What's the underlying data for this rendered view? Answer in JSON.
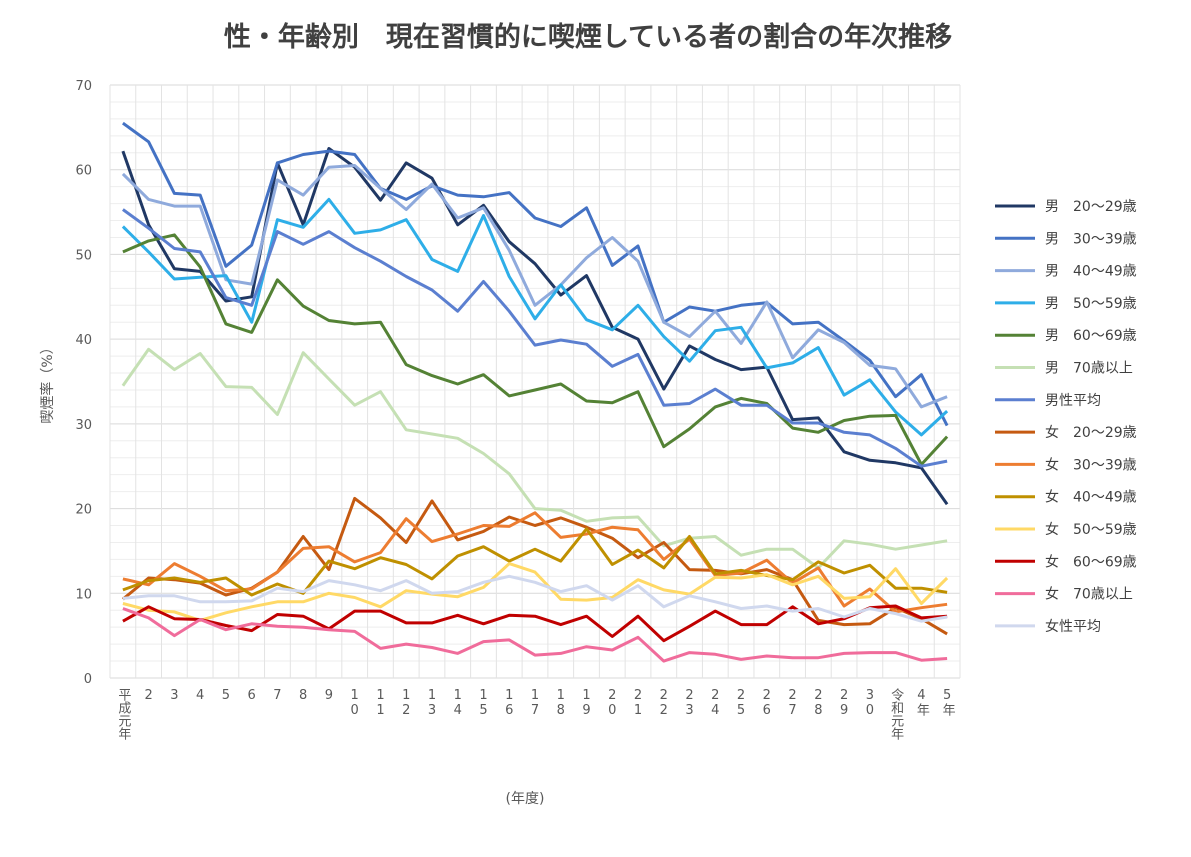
{
  "chart_data": {
    "type": "line",
    "title": "性・年齢別　現在習慣的に喫煙している者の割合の年次推移",
    "xlabel": "(年度)",
    "ylabel": "喫煙率（%）",
    "ylim": [
      0,
      70
    ],
    "yticks": [
      0,
      10,
      20,
      30,
      40,
      50,
      60,
      70
    ],
    "grid": true,
    "legend": "right",
    "categories": [
      "平成元年",
      "2",
      "3",
      "4",
      "5",
      "6",
      "7",
      "8",
      "9",
      "10",
      "11",
      "12",
      "13",
      "14",
      "15",
      "16",
      "17",
      "18",
      "19",
      "20",
      "21",
      "22",
      "23",
      "24",
      "25",
      "26",
      "27",
      "28",
      "29",
      "30",
      "令和元年",
      "4年",
      "5年"
    ],
    "series": [
      {
        "name": "男　20〜29歳",
        "color": "#203864",
        "values": [
          62.2,
          53.5,
          48.3,
          48.0,
          44.5,
          45.0,
          60.8,
          53.5,
          62.5,
          60.3,
          56.4,
          60.8,
          59.0,
          53.5,
          55.8,
          51.5,
          48.9,
          45.2,
          47.5,
          41.4,
          40.0,
          34.1,
          39.2,
          37.6,
          36.4,
          36.7,
          30.5,
          30.7,
          26.7,
          25.7,
          25.4,
          24.8,
          20.5
        ]
      },
      {
        "name": "男　30〜39歳",
        "color": "#4472C4",
        "values": [
          65.5,
          63.3,
          57.2,
          57.0,
          48.6,
          51.1,
          60.8,
          61.8,
          62.2,
          61.8,
          57.8,
          56.5,
          58.1,
          57.0,
          56.8,
          57.3,
          54.3,
          53.3,
          55.5,
          48.7,
          51.0,
          42.0,
          43.8,
          43.3,
          44.0,
          44.3,
          41.8,
          42.0,
          39.8,
          37.5,
          33.2,
          35.8,
          29.8
        ]
      },
      {
        "name": "男　40〜49歳",
        "color": "#8FAADC",
        "values": [
          59.5,
          56.5,
          55.7,
          55.7,
          47.0,
          46.5,
          58.8,
          57.0,
          60.3,
          60.5,
          57.8,
          55.3,
          58.3,
          54.3,
          55.5,
          50.5,
          44.0,
          46.4,
          49.6,
          52.0,
          49.2,
          42.0,
          40.3,
          43.3,
          39.5,
          44.4,
          37.8,
          41.1,
          39.6,
          36.9,
          36.5,
          32.0,
          33.2
        ]
      },
      {
        "name": "男　50〜59歳",
        "color": "#2EAEE8",
        "values": [
          53.3,
          50.3,
          47.1,
          47.3,
          47.5,
          42.0,
          54.1,
          53.2,
          56.5,
          52.5,
          52.9,
          54.1,
          49.4,
          48.0,
          54.6,
          47.4,
          42.4,
          46.4,
          42.3,
          41.1,
          44.0,
          40.3,
          37.4,
          41.0,
          41.4,
          36.6,
          37.2,
          39.0,
          33.4,
          35.2,
          31.4,
          28.7,
          31.5
        ]
      },
      {
        "name": "男　60〜69歳",
        "color": "#548235",
        "values": [
          50.3,
          51.6,
          52.3,
          48.5,
          41.8,
          40.8,
          47.0,
          43.9,
          42.2,
          41.8,
          42.0,
          37.0,
          35.7,
          34.7,
          35.8,
          33.3,
          34.0,
          34.7,
          32.7,
          32.5,
          33.8,
          27.3,
          29.4,
          32.0,
          33.0,
          32.4,
          29.5,
          29.0,
          30.4,
          30.9,
          31.0,
          25.2,
          28.5
        ]
      },
      {
        "name": "男　70歳以上",
        "color": "#C5E0B4",
        "values": [
          34.5,
          38.8,
          36.4,
          38.3,
          34.4,
          34.3,
          31.1,
          38.4,
          35.3,
          32.2,
          33.8,
          29.3,
          28.8,
          28.3,
          26.5,
          24.1,
          20.0,
          19.8,
          18.5,
          18.9,
          19.0,
          15.6,
          16.5,
          16.7,
          14.5,
          15.2,
          15.2,
          13.0,
          16.2,
          15.8,
          15.2,
          15.7,
          16.2
        ]
      },
      {
        "name": "男性平均",
        "color": "#5B7FD0",
        "values": [
          55.3,
          53.1,
          50.7,
          50.3,
          44.9,
          44.0,
          52.7,
          51.2,
          52.7,
          50.8,
          49.2,
          47.4,
          45.8,
          43.3,
          46.8,
          43.3,
          39.3,
          39.9,
          39.4,
          36.8,
          38.2,
          32.2,
          32.4,
          34.1,
          32.2,
          32.2,
          30.1,
          30.1,
          29.0,
          28.7,
          27.1,
          25.0,
          25.6
        ]
      },
      {
        "name": "女　20〜29歳",
        "color": "#C55A11",
        "values": [
          9.3,
          11.8,
          11.6,
          11.2,
          9.8,
          10.6,
          12.5,
          16.7,
          12.8,
          21.2,
          18.9,
          16.0,
          20.9,
          16.3,
          17.3,
          19.0,
          18.0,
          18.9,
          17.8,
          16.5,
          14.2,
          16.0,
          12.8,
          12.7,
          12.3,
          12.8,
          11.6,
          6.8,
          6.3,
          6.4,
          8.3,
          7.0,
          5.2
        ]
      },
      {
        "name": "女　30〜39歳",
        "color": "#ED7D31",
        "values": [
          11.7,
          11.0,
          13.5,
          12.0,
          10.3,
          10.5,
          12.5,
          15.3,
          15.5,
          13.7,
          14.8,
          18.8,
          16.1,
          17.0,
          18.0,
          17.9,
          19.5,
          16.6,
          17.0,
          17.8,
          17.5,
          14.0,
          16.4,
          12.1,
          12.4,
          13.9,
          11.2,
          13.0,
          8.5,
          10.5,
          7.8,
          8.3,
          8.7
        ]
      },
      {
        "name": "女　40〜49歳",
        "color": "#BF9000",
        "values": [
          10.4,
          11.5,
          11.8,
          11.3,
          11.8,
          9.8,
          11.1,
          10.0,
          13.8,
          12.9,
          14.2,
          13.4,
          11.7,
          14.4,
          15.5,
          13.8,
          15.2,
          13.8,
          17.6,
          13.4,
          15.1,
          13.0,
          16.7,
          12.3,
          12.7,
          12.1,
          11.6,
          13.7,
          12.4,
          13.3,
          10.6,
          10.6,
          10.1
        ]
      },
      {
        "name": "女　50〜59歳",
        "color": "#FFD966",
        "values": [
          8.8,
          8.0,
          7.8,
          6.8,
          7.7,
          8.4,
          9.0,
          9.0,
          10.0,
          9.5,
          8.4,
          10.3,
          9.9,
          9.6,
          10.7,
          13.5,
          12.5,
          9.3,
          9.2,
          9.5,
          11.6,
          10.4,
          9.9,
          11.9,
          11.8,
          12.2,
          11.0,
          12.0,
          9.4,
          9.6,
          12.9,
          8.8,
          11.8
        ]
      },
      {
        "name": "女　60〜69歳",
        "color": "#C00000",
        "values": [
          6.7,
          8.4,
          7.0,
          6.9,
          6.2,
          5.6,
          7.5,
          7.3,
          5.8,
          7.9,
          7.9,
          6.5,
          6.5,
          7.4,
          6.4,
          7.4,
          7.3,
          6.3,
          7.3,
          4.9,
          7.3,
          4.4,
          6.1,
          7.9,
          6.3,
          6.3,
          8.4,
          6.4,
          7.0,
          8.3,
          8.5,
          7.1,
          7.3
        ]
      },
      {
        "name": "女　70歳以上",
        "color": "#F06C9B",
        "values": [
          8.2,
          7.1,
          5.0,
          6.9,
          5.7,
          6.4,
          6.1,
          6.0,
          5.7,
          5.5,
          3.5,
          4.0,
          3.6,
          2.9,
          4.3,
          4.5,
          2.7,
          2.9,
          3.7,
          3.3,
          4.8,
          2.0,
          3.0,
          2.8,
          2.2,
          2.6,
          2.4,
          2.4,
          2.9,
          3.0,
          3.0,
          2.1,
          2.3
        ]
      },
      {
        "name": "女性平均",
        "color": "#D0D8EE",
        "values": [
          9.4,
          9.7,
          9.7,
          9.0,
          9.0,
          9.1,
          10.6,
          10.2,
          11.5,
          11.0,
          10.3,
          11.5,
          10.0,
          10.2,
          11.3,
          12.0,
          11.3,
          10.2,
          10.9,
          9.2,
          10.9,
          8.4,
          9.7,
          9.0,
          8.2,
          8.5,
          7.9,
          8.2,
          7.2,
          8.2,
          7.6,
          6.7,
          7.2
        ]
      }
    ]
  }
}
